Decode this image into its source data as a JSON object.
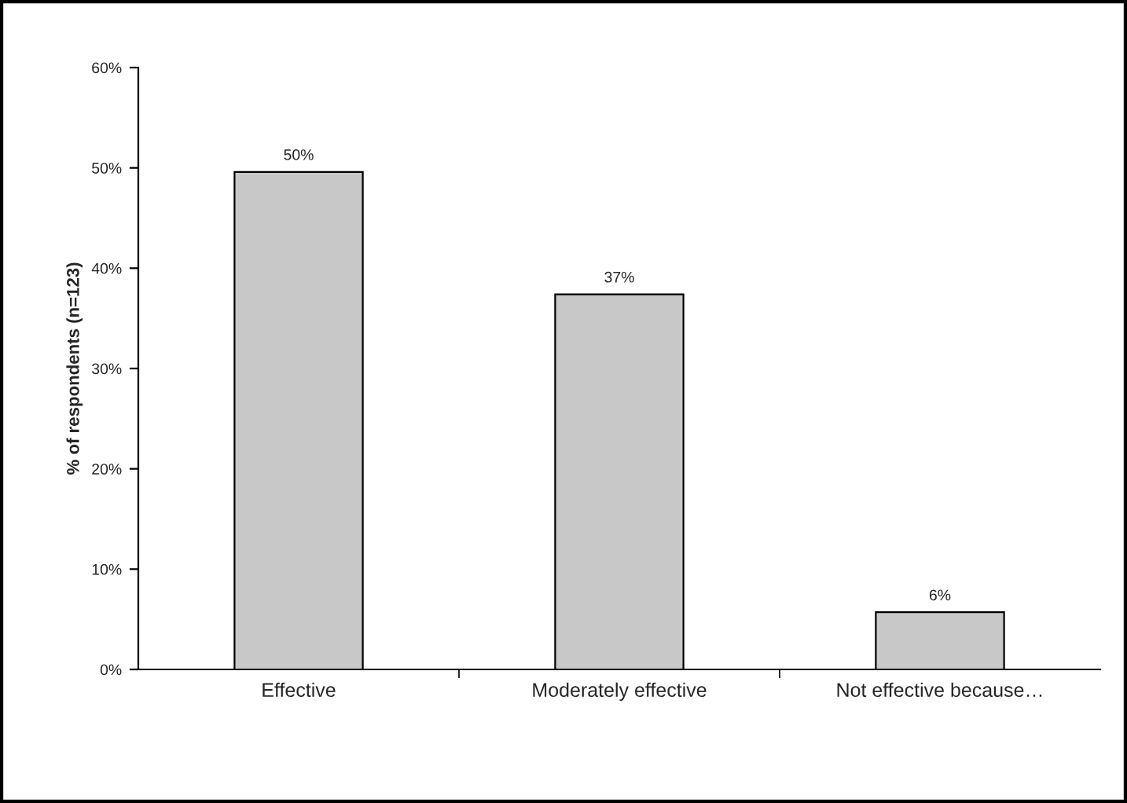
{
  "chart_data": {
    "type": "bar",
    "ylabel": "% of respondents (n=123)",
    "categories": [
      "Effective",
      "Moderately effective",
      "Not effective because…"
    ],
    "values": [
      49.6,
      37.4,
      5.7
    ],
    "value_labels": [
      "50%",
      "37%",
      "6%"
    ],
    "color": "#c8c8c8",
    "ylim": [
      0,
      60
    ],
    "yticks": [
      {
        "value": 0,
        "label": "0%"
      },
      {
        "value": 10,
        "label": "10%"
      },
      {
        "value": 20,
        "label": "20%"
      },
      {
        "value": 30,
        "label": "30%"
      },
      {
        "value": 40,
        "label": "40%"
      },
      {
        "value": 50,
        "label": "50%"
      },
      {
        "value": 60,
        "label": "60%"
      }
    ],
    "grid": false,
    "legend": false
  }
}
